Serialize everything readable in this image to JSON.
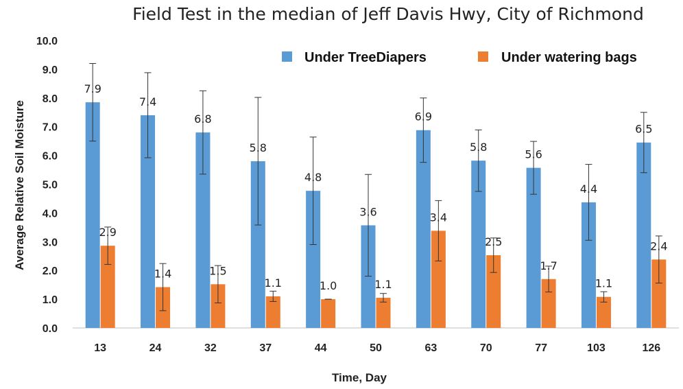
{
  "chart_data": {
    "type": "bar",
    "title": "Field Test in the median of Jeff Davis Hwy, City of Richmond",
    "xlabel": "Time, Day",
    "ylabel": "Average Relative Soil Moisture",
    "categories": [
      "13",
      "24",
      "32",
      "37",
      "44",
      "50",
      "63",
      "70",
      "77",
      "103",
      "126"
    ],
    "ylim": [
      0,
      10
    ],
    "yticks": [
      "0.0",
      "1.0",
      "2.0",
      "3.0",
      "4.0",
      "5.0",
      "6.0",
      "7.0",
      "8.0",
      "9.0",
      "10.0"
    ],
    "grid": false,
    "legend": "top-right",
    "series": [
      {
        "name": "Under TreeDiapers",
        "color": "#5b9bd5",
        "values": [
          7.85,
          7.4,
          6.8,
          5.8,
          4.77,
          3.57,
          6.88,
          5.82,
          5.57,
          4.37,
          6.45
        ],
        "labels": [
          "7.9",
          "7.4",
          "6.8",
          "5.8",
          "4.8",
          "3.6",
          "6.9",
          "5.8",
          "5.6",
          "4.4",
          "6.5"
        ],
        "error": [
          1.35,
          1.48,
          1.45,
          2.22,
          1.87,
          1.77,
          1.12,
          1.07,
          0.92,
          1.32,
          1.05
        ]
      },
      {
        "name": "Under watering bags",
        "color": "#ed7d31",
        "values": [
          2.86,
          1.42,
          1.52,
          1.1,
          1.0,
          1.05,
          3.38,
          2.53,
          1.7,
          1.08,
          2.38
        ],
        "labels": [
          "2.9",
          "1.4",
          "1.5",
          "1.1",
          "1.0",
          "1.1",
          "3.4",
          "2.5",
          "1.7",
          "1.1",
          "2.4"
        ],
        "error": [
          0.65,
          0.82,
          0.65,
          0.18,
          0.0,
          0.15,
          1.05,
          0.6,
          0.45,
          0.18,
          0.82
        ]
      }
    ]
  }
}
